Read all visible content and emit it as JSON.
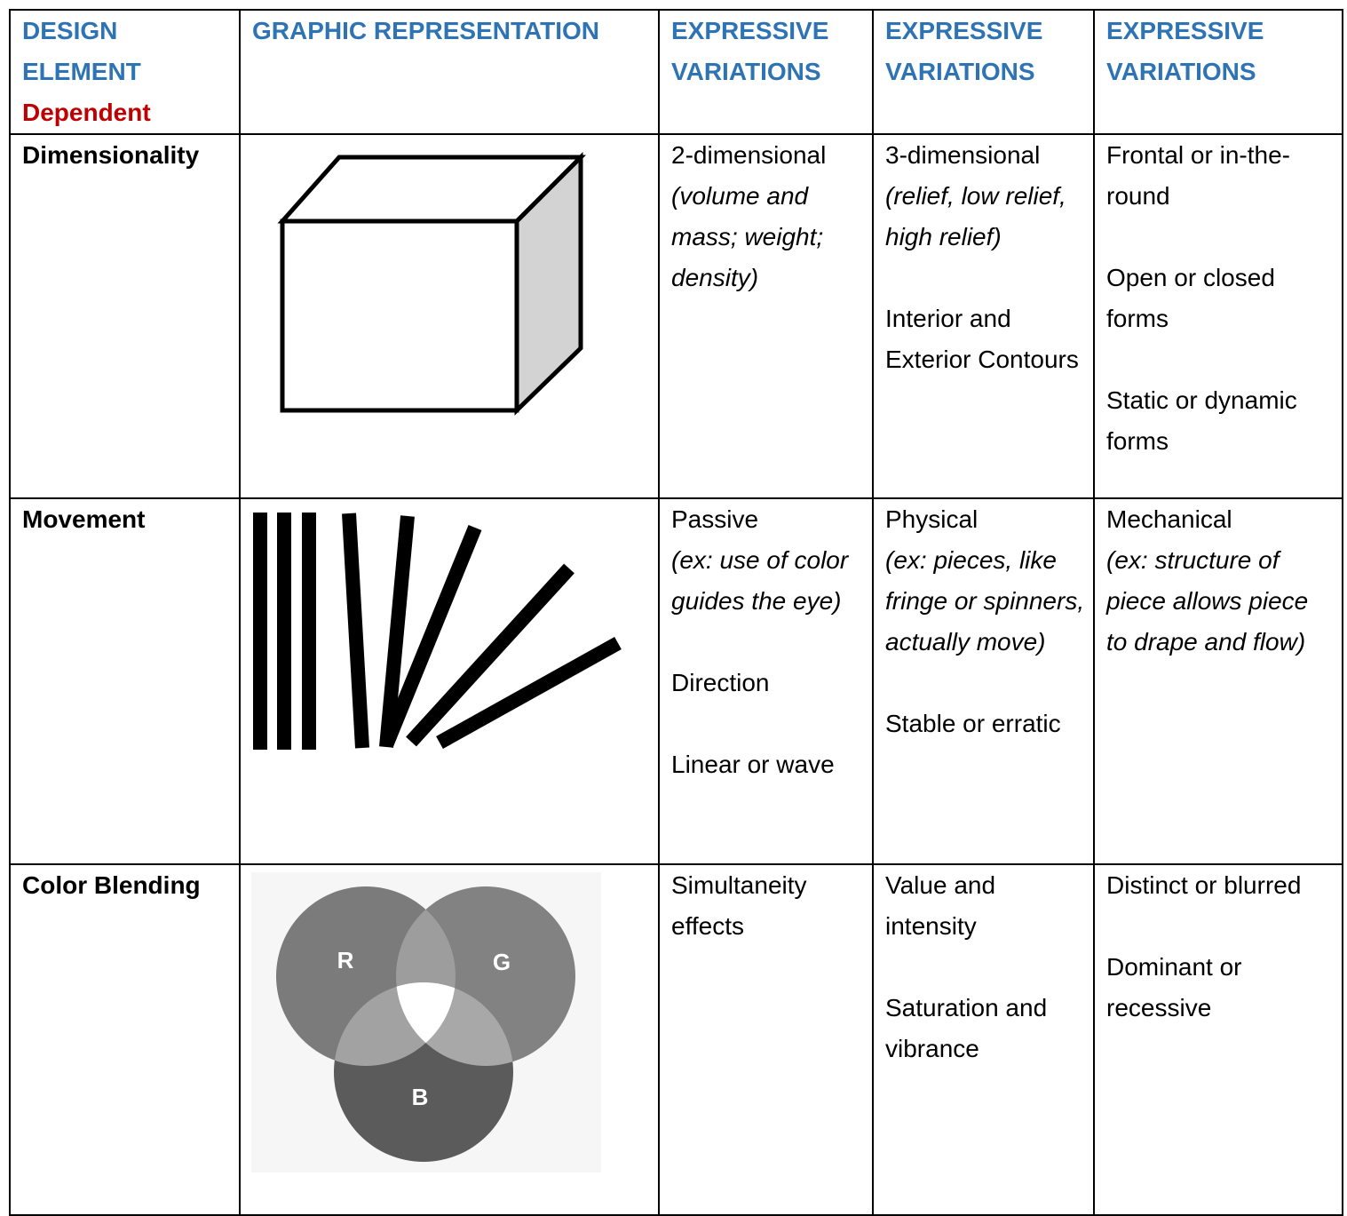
{
  "table": {
    "header": {
      "design_element": {
        "title": "DESIGN ELEMENT",
        "subtitle": "Dependent"
      },
      "columns": [
        "GRAPHIC REPRESENTATION",
        "EXPRESSIVE VARIATIONS",
        "EXPRESSIVE VARIATIONS",
        "EXPRESSIVE VARIATIONS"
      ]
    },
    "rows": [
      {
        "element": "Dimensionality",
        "variations": [
          [
            {
              "text": "2-dimensional",
              "note": "(volume and mass; weight; density)"
            }
          ],
          [
            {
              "text": "3-dimensional",
              "note": "(relief, low relief, high relief)"
            },
            {
              "text": "Interior and Exterior Contours"
            }
          ],
          [
            {
              "text": "Frontal or in-the-round"
            },
            {
              "text": "Open or closed forms"
            },
            {
              "text": "Static or dynamic forms"
            }
          ]
        ]
      },
      {
        "element": "Movement",
        "variations": [
          [
            {
              "text": "Passive",
              "note": "(ex: use of color guides the eye)"
            },
            {
              "text": "Direction"
            },
            {
              "text": "Linear or wave"
            }
          ],
          [
            {
              "text": "Physical",
              "note": "(ex: pieces, like fringe or spinners, actually move)"
            },
            {
              "text": "Stable or erratic"
            }
          ],
          [
            {
              "text": "Mechanical",
              "note": "(ex: structure of piece allows piece to drape and flow)"
            }
          ]
        ]
      },
      {
        "element": "Color Blending",
        "figure_labels": [
          "R",
          "G",
          "B"
        ],
        "variations": [
          [
            {
              "text": "Simultaneity effects"
            }
          ],
          [
            {
              "text": "Value and intensity"
            },
            {
              "text": "Saturation and vibrance"
            }
          ],
          [
            {
              "text": "Distinct or blurred"
            },
            {
              "text": "Dominant or recessive"
            }
          ]
        ]
      }
    ]
  }
}
